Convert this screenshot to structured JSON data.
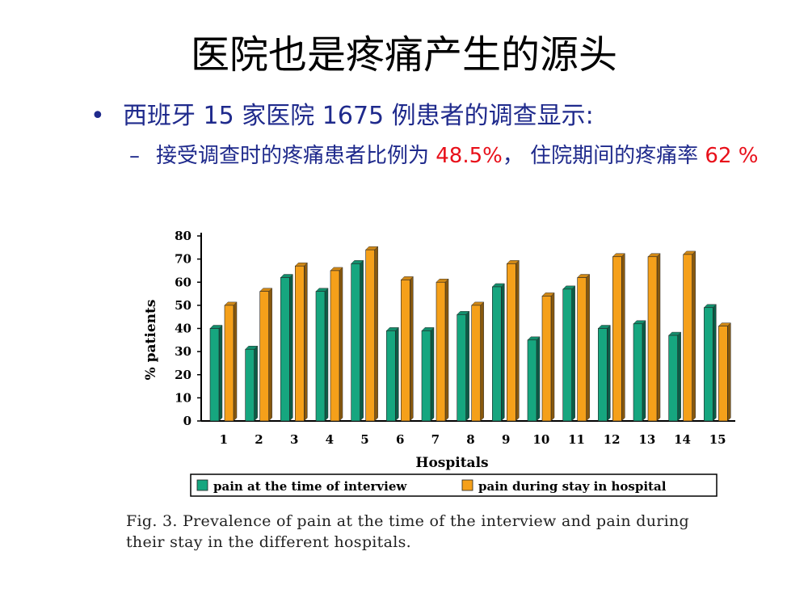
{
  "slide": {
    "title": "医院也是疼痛产生的源头",
    "bullet1": "西班牙 15 家医院 1675 例患者的调查显示:",
    "bullet1_marker": "•",
    "bullet2_marker": "–",
    "bullet2_part1": "接受调查时的疼痛患者比例为 ",
    "bullet2_red1": "48.5%",
    "bullet2_part2": "， 住院期间的疼痛率 ",
    "bullet2_red2": "62 %"
  },
  "colors": {
    "text_blue": "#1f2a8c",
    "highlight_red": "#e8101a",
    "series1": "#16a67f",
    "series2": "#f5a01a"
  },
  "chart_data": {
    "type": "bar",
    "ylabel": "% patients",
    "xlabel": "Hospitals",
    "ylim": [
      0,
      80
    ],
    "yticks": [
      "0",
      "10",
      "20",
      "30",
      "40",
      "50",
      "60",
      "70",
      "80"
    ],
    "categories": [
      "1",
      "2",
      "3",
      "4",
      "5",
      "6",
      "7",
      "8",
      "9",
      "10",
      "11",
      "12",
      "13",
      "14",
      "15"
    ],
    "series": [
      {
        "name": "pain at the time of interview",
        "color": "#16a67f",
        "values": [
          40,
          31,
          62,
          56,
          68,
          39,
          39,
          46,
          58,
          35,
          57,
          40,
          42,
          37,
          49
        ]
      },
      {
        "name": "pain during stay in hospital",
        "color": "#f5a01a",
        "values": [
          50,
          56,
          67,
          65,
          74,
          61,
          60,
          50,
          68,
          54,
          62,
          71,
          71,
          72,
          41
        ]
      }
    ],
    "legend_position": "bottom"
  },
  "caption": {
    "line1": "Fig. 3.  Prevalence of pain at the time of the interview and pain during",
    "line2": "their stay in the different hospitals."
  }
}
